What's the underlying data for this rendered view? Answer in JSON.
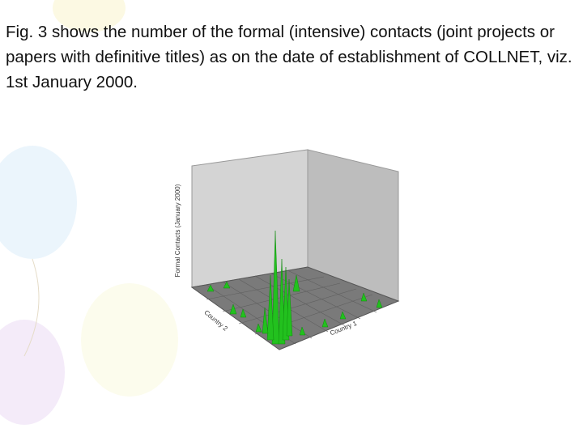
{
  "slide": {
    "text": "Fig. 3 shows the number of the formal (intensive) contacts (joint projects or papers with definitive titles) as on the date of establishment of COLLNET, viz. 1st January 2000.",
    "figure": {
      "z_axis_label": "Formal Contacts (January 2000)",
      "x_axis_label": "Country 1",
      "y_axis_label": "Country 2"
    }
  }
}
